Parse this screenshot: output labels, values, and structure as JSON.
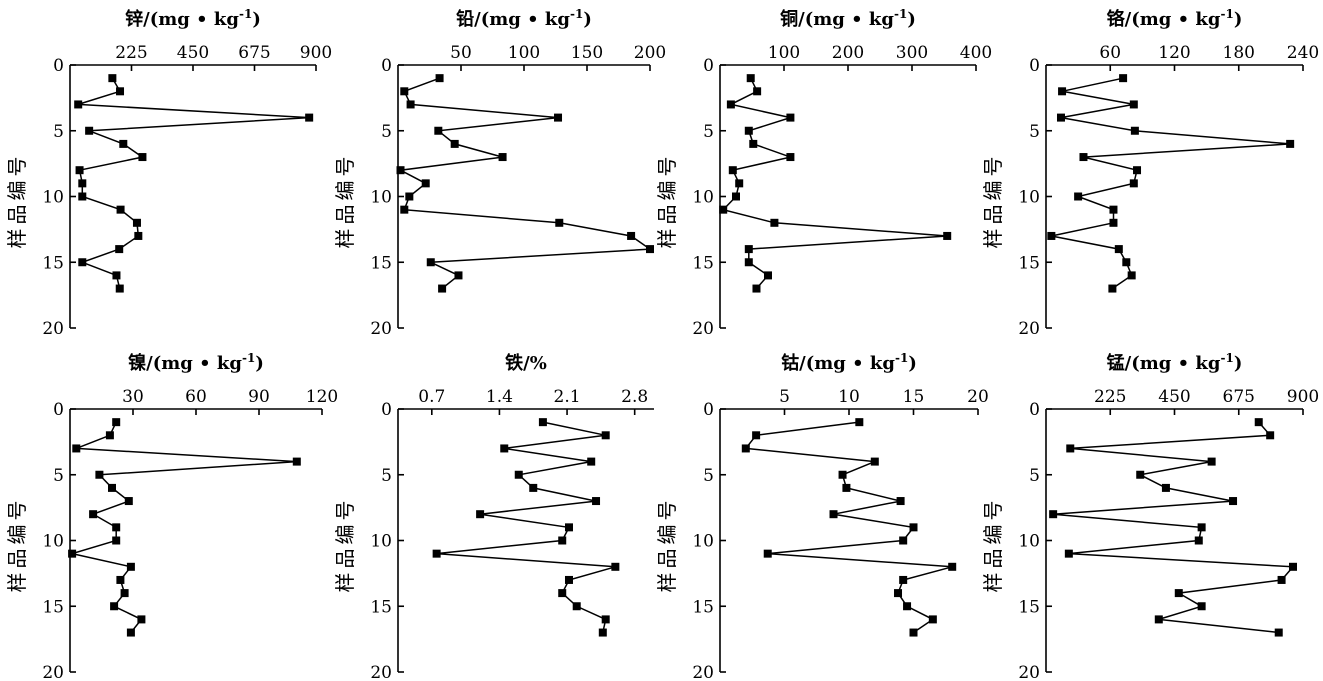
{
  "chart_data": [
    {
      "type": "line",
      "title": "锌/(mg • kg-1)",
      "title_parts": {
        "name": "锌",
        "unit": "/(mg • kg",
        "exponent": "-1",
        "close": ")"
      },
      "xlim": [
        0,
        900
      ],
      "xticks": [
        225,
        450,
        675,
        900
      ],
      "xtick_labels": [
        "225",
        "450",
        "675",
        "900"
      ],
      "ylabel": "样品编号",
      "ylim": [
        0,
        20
      ],
      "yticks": [
        0,
        5,
        10,
        15,
        20
      ],
      "ytick_labels": [
        "0",
        "5",
        "10",
        "15",
        "20"
      ],
      "y_inverted": true,
      "x_axis_position": "top",
      "series": [
        {
          "x": [
            155,
            183,
            30,
            875,
            70,
            195,
            265,
            35,
            45,
            45,
            185,
            245,
            250,
            180,
            45,
            170,
            182
          ],
          "y": [
            1,
            2,
            3,
            4,
            5,
            6,
            7,
            8,
            9,
            10,
            11,
            12,
            13,
            14,
            15,
            16,
            17
          ]
        }
      ]
    },
    {
      "type": "line",
      "title": "铅/(mg • kg-1)",
      "title_parts": {
        "name": "铅",
        "unit": "/(mg • kg",
        "exponent": "-1",
        "close": ")"
      },
      "xlim": [
        0,
        200
      ],
      "xticks": [
        50,
        100,
        150,
        200
      ],
      "xtick_labels": [
        "50",
        "100",
        "150",
        "200"
      ],
      "ylabel": "样品编号",
      "ylim": [
        0,
        20
      ],
      "yticks": [
        0,
        5,
        10,
        15,
        20
      ],
      "ytick_labels": [
        "0",
        "5",
        "10",
        "15",
        "20"
      ],
      "y_inverted": true,
      "x_axis_position": "top",
      "series": [
        {
          "x": [
            33,
            5,
            10,
            127,
            32,
            45,
            83,
            2,
            22,
            9,
            5,
            128,
            185,
            200,
            26,
            48,
            35
          ],
          "y": [
            1,
            2,
            3,
            4,
            5,
            6,
            7,
            8,
            9,
            10,
            11,
            12,
            13,
            14,
            15,
            16,
            17
          ]
        }
      ]
    },
    {
      "type": "line",
      "title": "铜/(mg • kg-1)",
      "title_parts": {
        "name": "铜",
        "unit": "/(mg • kg",
        "exponent": "-1",
        "close": ")"
      },
      "xlim": [
        0,
        400
      ],
      "xticks": [
        100,
        200,
        300,
        400
      ],
      "xtick_labels": [
        "100",
        "200",
        "300",
        "400"
      ],
      "ylabel": "样品编号",
      "ylim": [
        0,
        20
      ],
      "yticks": [
        0,
        5,
        10,
        15,
        20
      ],
      "ytick_labels": [
        "0",
        "5",
        "10",
        "15",
        "20"
      ],
      "y_inverted": true,
      "x_axis_position": "top",
      "series": [
        {
          "x": [
            48,
            58,
            17,
            110,
            45,
            52,
            110,
            20,
            30,
            25,
            5,
            85,
            355,
            45,
            45,
            75,
            57
          ],
          "y": [
            1,
            2,
            3,
            4,
            5,
            6,
            7,
            8,
            9,
            10,
            11,
            12,
            13,
            14,
            15,
            16,
            17
          ]
        }
      ]
    },
    {
      "type": "line",
      "title": "铬/(mg • kg-1)",
      "title_parts": {
        "name": "铬",
        "unit": "/(mg • kg",
        "exponent": "-1",
        "close": ")"
      },
      "xlim": [
        0,
        240
      ],
      "xticks": [
        60,
        120,
        180,
        240
      ],
      "xtick_labels": [
        "60",
        "120",
        "180",
        "240"
      ],
      "ylabel": "样品编号",
      "ylim": [
        0,
        20
      ],
      "yticks": [
        0,
        5,
        10,
        15,
        20
      ],
      "ytick_labels": [
        "0",
        "5",
        "10",
        "15",
        "20"
      ],
      "y_inverted": true,
      "x_axis_position": "top",
      "series": [
        {
          "x": [
            72,
            15,
            82,
            14,
            83,
            228,
            35,
            85,
            82,
            30,
            63,
            63,
            5,
            68,
            75,
            80,
            62
          ],
          "y": [
            1,
            2,
            3,
            4,
            5,
            6,
            7,
            8,
            9,
            10,
            11,
            12,
            13,
            14,
            15,
            16,
            17
          ]
        }
      ]
    },
    {
      "type": "line",
      "title": "镍/(mg • kg-1)",
      "title_parts": {
        "name": "镍",
        "unit": "/(mg • kg",
        "exponent": "-1",
        "close": ")"
      },
      "xlim": [
        0,
        120
      ],
      "xticks": [
        30,
        60,
        90,
        120
      ],
      "xtick_labels": [
        "30",
        "60",
        "90",
        "120"
      ],
      "ylabel": "样品编号",
      "ylim": [
        0,
        20
      ],
      "yticks": [
        0,
        5,
        10,
        15,
        20
      ],
      "ytick_labels": [
        "0",
        "5",
        "10",
        "15",
        "20"
      ],
      "y_inverted": true,
      "x_axis_position": "top",
      "series": [
        {
          "x": [
            22,
            19,
            3,
            108,
            14,
            20,
            28,
            11,
            22,
            22,
            1,
            29,
            24,
            26,
            21,
            34,
            29
          ],
          "y": [
            1,
            2,
            3,
            4,
            5,
            6,
            7,
            8,
            9,
            10,
            11,
            12,
            13,
            14,
            15,
            16,
            17
          ]
        }
      ]
    },
    {
      "type": "line",
      "title": "铁/%",
      "title_parts": {
        "name": "铁",
        "unit": "/%",
        "exponent": "",
        "close": ""
      },
      "xlim": [
        0.35,
        3.0
      ],
      "xticks": [
        0.7,
        1.4,
        2.1,
        2.8
      ],
      "xtick_labels": [
        "0.7",
        "1.4",
        "2.1",
        "2.8"
      ],
      "ylabel": "样品编号",
      "ylim": [
        0,
        20
      ],
      "yticks": [
        0,
        5,
        10,
        15,
        20
      ],
      "ytick_labels": [
        "0",
        "5",
        "10",
        "15",
        "20"
      ],
      "y_inverted": true,
      "x_axis_position": "top",
      "series": [
        {
          "x": [
            1.85,
            2.5,
            1.45,
            2.35,
            1.6,
            1.75,
            2.4,
            1.2,
            2.12,
            2.05,
            0.75,
            2.6,
            2.12,
            2.05,
            2.2,
            2.5,
            2.47
          ],
          "y": [
            1,
            2,
            3,
            4,
            5,
            6,
            7,
            8,
            9,
            10,
            11,
            12,
            13,
            14,
            15,
            16,
            17
          ]
        }
      ]
    },
    {
      "type": "line",
      "title": "钴/(mg • kg-1)",
      "title_parts": {
        "name": "钴",
        "unit": "/(mg • kg",
        "exponent": "-1",
        "close": ")"
      },
      "xlim": [
        0,
        20
      ],
      "xticks": [
        5,
        10,
        15,
        20
      ],
      "xtick_labels": [
        "5",
        "10",
        "15",
        "20"
      ],
      "ylabel": "样品编号",
      "ylim": [
        0,
        20
      ],
      "yticks": [
        0,
        5,
        10,
        15,
        20
      ],
      "ytick_labels": [
        "0",
        "5",
        "10",
        "15",
        "20"
      ],
      "y_inverted": true,
      "x_axis_position": "top",
      "series": [
        {
          "x": [
            10.8,
            2.8,
            2.0,
            12.0,
            9.5,
            9.8,
            14.0,
            8.8,
            15.0,
            14.2,
            3.7,
            18.0,
            14.2,
            13.8,
            14.5,
            16.5,
            15.0
          ],
          "y": [
            1,
            2,
            3,
            4,
            5,
            6,
            7,
            8,
            9,
            10,
            11,
            12,
            13,
            14,
            15,
            16,
            17
          ]
        }
      ]
    },
    {
      "type": "line",
      "title": "锰/(mg • kg-1)",
      "title_parts": {
        "name": "锰",
        "unit": "/(mg • kg",
        "exponent": "-1",
        "close": ")"
      },
      "xlim": [
        0,
        900
      ],
      "xticks": [
        225,
        450,
        675,
        900
      ],
      "xtick_labels": [
        "225",
        "450",
        "675",
        "900"
      ],
      "ylabel": "样品编号",
      "ylim": [
        0,
        20
      ],
      "yticks": [
        0,
        5,
        10,
        15,
        20
      ],
      "ytick_labels": [
        "0",
        "5",
        "10",
        "15",
        "20"
      ],
      "y_inverted": true,
      "x_axis_position": "top",
      "series": [
        {
          "x": [
            745,
            785,
            85,
            580,
            330,
            420,
            655,
            25,
            545,
            535,
            80,
            865,
            825,
            465,
            545,
            395,
            815
          ],
          "y": [
            1,
            2,
            3,
            4,
            5,
            6,
            7,
            8,
            9,
            10,
            11,
            12,
            13,
            14,
            15,
            16,
            17
          ]
        }
      ]
    }
  ]
}
